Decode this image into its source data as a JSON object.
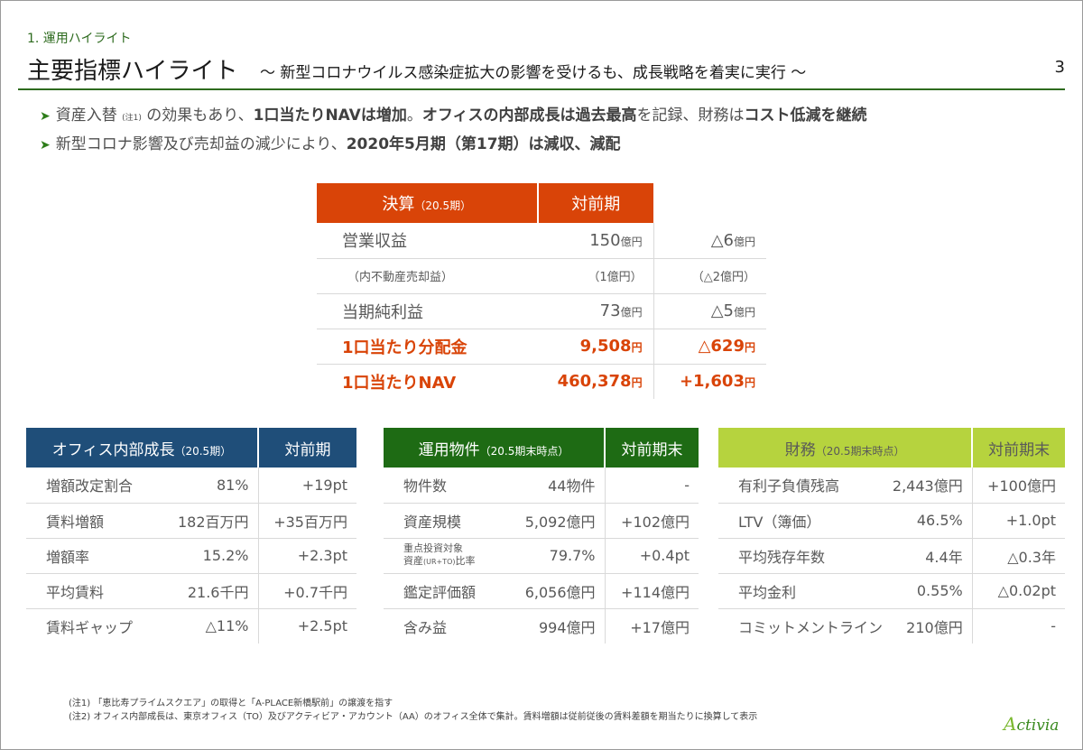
{
  "header": {
    "section_label": "1. 運用ハイライト",
    "title": "主要指標ハイライト",
    "subtitle": "～ 新型コロナウイルス感染症拡大の影響を受けるも、成長戦略を着実に実行 ～",
    "page_number": "3"
  },
  "bullets": [
    {
      "p1": "資産入替",
      "note": "(注1)",
      "p2": " の効果もあり、",
      "b1": "1口当たりNAVは増加",
      "p3": "。",
      "b2": "オフィスの内部成長は過去最高",
      "p4": "を記録、財務は",
      "b3": "コスト低減を継続"
    },
    {
      "p1": "新型コロナ影響及び売却益の減少により、",
      "b1": "2020年5月期（第17期）は減収、減配"
    }
  ],
  "settlement": {
    "header": {
      "label": "決算",
      "period": "（20.5期）",
      "change": "対前期"
    },
    "rows": [
      {
        "label": "営業収益",
        "value": "150",
        "value_unit": "億円",
        "change": "△6",
        "change_unit": "億円"
      },
      {
        "label": "（内不動産売却益）",
        "value": "（1億円）",
        "value_unit": "",
        "change": "（△2億円）",
        "change_unit": ""
      },
      {
        "label": "当期純利益",
        "value": "73",
        "value_unit": "億円",
        "change": "△5",
        "change_unit": "億円"
      },
      {
        "label": "1口当たり分配金",
        "value": "9,508",
        "value_unit": "円",
        "change": "△629",
        "change_unit": "円"
      },
      {
        "label": "1口当たりNAV",
        "value": "460,378",
        "value_unit": "円",
        "change": "+1,603",
        "change_unit": "円"
      }
    ]
  },
  "office": {
    "header": {
      "label": "オフィス内部成長",
      "period": "（20.5期）",
      "change": "対前期"
    },
    "rows": [
      {
        "label": "増額改定割合",
        "value": "81%",
        "change": "+19pt"
      },
      {
        "label": "賃料増額",
        "value": "182百万円",
        "change": "+35百万円"
      },
      {
        "label": "増額率",
        "value": "15.2%",
        "change": "+2.3pt"
      },
      {
        "label": "平均賃料",
        "value": "21.6千円",
        "change": "+0.7千円"
      },
      {
        "label": "賃料ギャップ",
        "value": "△11%",
        "change": "+2.5pt"
      }
    ]
  },
  "assets": {
    "header": {
      "label": "運用物件",
      "period": "（20.5期末時点）",
      "change": "対前期末"
    },
    "rows": [
      {
        "label": "物件数",
        "value": "44物件",
        "change": "-"
      },
      {
        "label": "資産規模",
        "value": "5,092億円",
        "change": "+102億円"
      },
      {
        "label_line1": "重点投資対象",
        "label_line2a": "資産",
        "label_line2_note": "(UR+TO)",
        "label_line2b": "比率",
        "value": "79.7%",
        "change": "+0.4pt"
      },
      {
        "label": "鑑定評価額",
        "value": "6,056億円",
        "change": "+114億円"
      },
      {
        "label": "含み益",
        "value": "994億円",
        "change": "+17億円"
      }
    ]
  },
  "finance": {
    "header": {
      "label": "財務",
      "period": "（20.5期末時点）",
      "change": "対前期末"
    },
    "rows": [
      {
        "label": "有利子負債残高",
        "value": "2,443億円",
        "change": "+100億円"
      },
      {
        "label": "LTV（簿価）",
        "value": "46.5%",
        "change": "+1.0pt"
      },
      {
        "label": "平均残存年数",
        "value": "4.4年",
        "change": "△0.3年"
      },
      {
        "label": "平均金利",
        "value": "0.55%",
        "change": "△0.02pt"
      },
      {
        "label": "コミットメントライン",
        "value": "210億円",
        "change": "-"
      }
    ]
  },
  "footnotes": [
    "(注1) 「恵比寿プライムスクエア」の取得と「A-PLACE新橋駅前」の譲渡を指す",
    "(注2) オフィス内部成長は、東京オフィス（TO）及びアクティビア・アカウント（AA）のオフィス全体で集計。賃料増額は従前従後の賃料差額を期当たりに換算して表示"
  ],
  "logo": {
    "initial": "A",
    "rest": "ctivia"
  },
  "colors": {
    "settlement_header": "#d94408",
    "office_header": "#1f4e79",
    "assets_header": "#1e6b14",
    "finance_header": "#b6d33e",
    "accent_green": "#2e6b1f"
  }
}
